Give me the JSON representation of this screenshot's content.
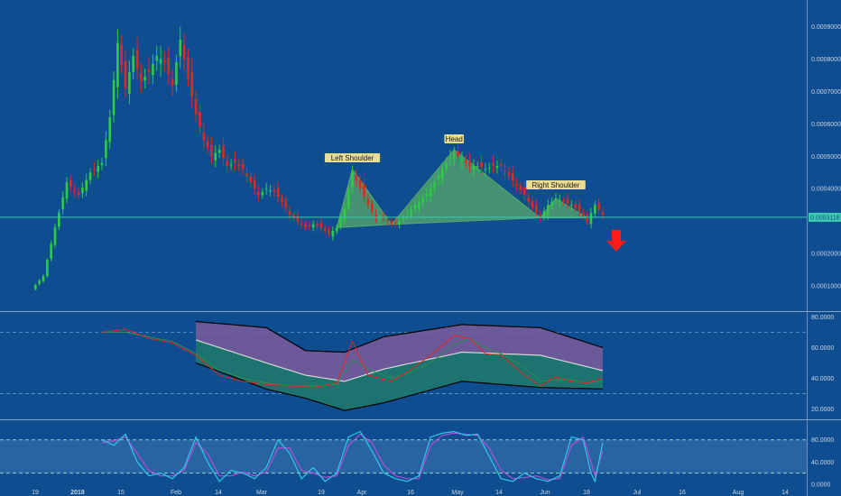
{
  "colors": {
    "background": "#0e4d8f",
    "up": "#2ecc40",
    "down": "#e0281e",
    "pattern_fill": "#57a96a",
    "neckline": "#3fc9b0",
    "arrow": "#ff1a1a",
    "bb_upper": "#000000",
    "bb_mid": "#d8d8d8",
    "bb_fill_top": "#7b5c9c",
    "bb_fill_bottom": "#1f7a6a",
    "rsi": "#e0281e",
    "rsi_signal": "#2a8f55",
    "stoch_k": "#33c7e6",
    "stoch_d": "#b54dd8",
    "stoch_band": "#3d78b0"
  },
  "chart_data": [
    {
      "type": "candlestick",
      "panel": "price",
      "x_tick_labels": [
        "19",
        "2018",
        "15",
        "Feb",
        "14",
        "Mar",
        "19",
        "Apr",
        "16",
        "May",
        "14",
        "Jun",
        "18",
        "Jul",
        "16",
        "Aug",
        "14"
      ],
      "y_tick_labels": [
        "0.0009000",
        "0.0008000",
        "0.0007000",
        "0.0006000",
        "0.0005000",
        "0.0004000",
        "0.0003118",
        "0.0002000",
        "0.0001000"
      ],
      "ylim": [
        5e-05,
        0.00096
      ],
      "last_price": 0.0003118,
      "last_price_label": "0.0003118",
      "close_path": [
        [
          0,
          9e-05
        ],
        [
          3,
          0.00013
        ],
        [
          6,
          0.00028
        ],
        [
          9,
          0.00042
        ],
        [
          12,
          0.00038
        ],
        [
          15,
          0.00045
        ],
        [
          18,
          0.00048
        ],
        [
          20,
          0.00062
        ],
        [
          22,
          0.00085
        ],
        [
          24,
          0.00071
        ],
        [
          26,
          0.00081
        ],
        [
          28,
          0.00073
        ],
        [
          30,
          0.00076
        ],
        [
          32,
          0.00081
        ],
        [
          34,
          0.00079
        ],
        [
          36,
          0.00072
        ],
        [
          38,
          0.00086
        ],
        [
          40,
          0.00074
        ],
        [
          42,
          0.00063
        ],
        [
          44,
          0.00055
        ],
        [
          46,
          0.0005
        ],
        [
          48,
          0.00052
        ],
        [
          50,
          0.00047
        ],
        [
          52,
          0.00048
        ],
        [
          54,
          0.00046
        ],
        [
          56,
          0.00042
        ],
        [
          58,
          0.00038
        ],
        [
          60,
          0.0004
        ],
        [
          62,
          0.00039
        ],
        [
          64,
          0.00036
        ],
        [
          66,
          0.00032
        ],
        [
          68,
          0.0003
        ],
        [
          70,
          0.00028
        ],
        [
          72,
          0.00029
        ],
        [
          74,
          0.00028
        ],
        [
          76,
          0.00026
        ],
        [
          78,
          0.00028
        ],
        [
          80,
          0.00034
        ],
        [
          82,
          0.00045
        ],
        [
          84,
          0.0004
        ],
        [
          86,
          0.00035
        ],
        [
          88,
          0.00031
        ],
        [
          90,
          0.00031
        ],
        [
          92,
          0.00029
        ],
        [
          94,
          0.0003
        ],
        [
          96,
          0.00032
        ],
        [
          98,
          0.00035
        ],
        [
          100,
          0.00037
        ],
        [
          102,
          0.0004
        ],
        [
          104,
          0.00044
        ],
        [
          106,
          0.00048
        ],
        [
          108,
          0.00051
        ],
        [
          110,
          0.00049
        ],
        [
          112,
          0.00047
        ],
        [
          114,
          0.00047
        ],
        [
          116,
          0.00046
        ],
        [
          118,
          0.00047
        ],
        [
          120,
          0.00047
        ],
        [
          122,
          0.00044
        ],
        [
          124,
          0.00041
        ],
        [
          126,
          0.00038
        ],
        [
          128,
          0.00034
        ],
        [
          130,
          0.00031
        ],
        [
          132,
          0.00035
        ],
        [
          134,
          0.00037
        ],
        [
          136,
          0.00036
        ],
        [
          138,
          0.00035
        ],
        [
          140,
          0.00033
        ],
        [
          142,
          0.0003
        ],
        [
          144,
          0.00035
        ],
        [
          146,
          0.00032
        ]
      ],
      "patterns": [
        {
          "label": "Left Shoulder",
          "points": [
            [
              78,
              0.00028
            ],
            [
              82,
              0.00046
            ],
            [
              92,
              0.00029
            ]
          ]
        },
        {
          "label": "Head",
          "points": [
            [
              92,
              0.00029
            ],
            [
              108,
              0.00052
            ],
            [
              130,
              0.00031
            ]
          ]
        },
        {
          "label": "Right Shoulder",
          "points": [
            [
              130,
              0.00031
            ],
            [
              134,
              0.00037
            ],
            [
              142,
              0.00031
            ]
          ]
        }
      ],
      "neckline": 0.0003118
    },
    {
      "type": "line",
      "panel": "rsi_bollinger",
      "y_tick_labels": [
        "80.0000",
        "60.0000",
        "40.0000",
        "20.0000"
      ],
      "ylim": [
        15,
        82
      ],
      "dashed_levels": [
        70,
        30
      ],
      "series": [
        {
          "key": "bb_upper",
          "points": [
            [
              42,
              77
            ],
            [
              60,
              73
            ],
            [
              70,
              58
            ],
            [
              80,
              57
            ],
            [
              90,
              67
            ],
            [
              110,
              75
            ],
            [
              130,
              73
            ],
            [
              146,
              60
            ]
          ]
        },
        {
          "key": "bb_lower",
          "points": [
            [
              42,
              50
            ],
            [
              60,
              33
            ],
            [
              70,
              27
            ],
            [
              80,
              19
            ],
            [
              90,
              24
            ],
            [
              110,
              38
            ],
            [
              130,
              34
            ],
            [
              146,
              33
            ]
          ]
        },
        {
          "key": "bb_mid",
          "points": [
            [
              42,
              65
            ],
            [
              60,
              50
            ],
            [
              70,
              42
            ],
            [
              80,
              38
            ],
            [
              90,
              46
            ],
            [
              110,
              57
            ],
            [
              130,
              55
            ],
            [
              146,
              45
            ]
          ]
        },
        {
          "key": "rsi",
          "points": [
            [
              18,
              70
            ],
            [
              24,
              72
            ],
            [
              30,
              66
            ],
            [
              36,
              63
            ],
            [
              42,
              55
            ],
            [
              48,
              42
            ],
            [
              54,
              38
            ],
            [
              60,
              36
            ],
            [
              66,
              35
            ],
            [
              72,
              34
            ],
            [
              78,
              37
            ],
            [
              82,
              64
            ],
            [
              86,
              42
            ],
            [
              92,
              38
            ],
            [
              96,
              44
            ],
            [
              102,
              55
            ],
            [
              108,
              68
            ],
            [
              112,
              66
            ],
            [
              116,
              56
            ],
            [
              120,
              55
            ],
            [
              126,
              42
            ],
            [
              130,
              35
            ],
            [
              134,
              41
            ],
            [
              138,
              38
            ],
            [
              142,
              37
            ],
            [
              146,
              40
            ]
          ]
        },
        {
          "key": "rsi_signal",
          "points": [
            [
              18,
              70
            ],
            [
              24,
              70
            ],
            [
              30,
              67
            ],
            [
              36,
              64
            ],
            [
              42,
              56
            ],
            [
              48,
              45
            ],
            [
              54,
              40
            ],
            [
              60,
              37
            ],
            [
              66,
              35
            ],
            [
              72,
              35
            ],
            [
              78,
              36
            ],
            [
              82,
              52
            ],
            [
              86,
              46
            ],
            [
              92,
              40
            ],
            [
              96,
              43
            ],
            [
              102,
              50
            ],
            [
              108,
              62
            ],
            [
              112,
              66
            ],
            [
              116,
              60
            ],
            [
              120,
              56
            ],
            [
              126,
              47
            ],
            [
              130,
              38
            ],
            [
              134,
              39
            ],
            [
              138,
              39
            ],
            [
              142,
              37
            ],
            [
              146,
              38
            ]
          ]
        }
      ]
    },
    {
      "type": "line",
      "panel": "stochastic",
      "y_tick_labels": [
        "80.0000",
        "40.0000",
        "0.0000"
      ],
      "ylim": [
        -5,
        112
      ],
      "dashed_levels": [
        80,
        20
      ],
      "series": [
        {
          "key": "stoch_k",
          "points": [
            [
              18,
              80
            ],
            [
              21,
              70
            ],
            [
              24,
              90
            ],
            [
              27,
              40
            ],
            [
              30,
              15
            ],
            [
              33,
              20
            ],
            [
              36,
              10
            ],
            [
              39,
              30
            ],
            [
              42,
              85
            ],
            [
              45,
              40
            ],
            [
              48,
              5
            ],
            [
              51,
              25
            ],
            [
              54,
              20
            ],
            [
              57,
              10
            ],
            [
              60,
              30
            ],
            [
              63,
              80
            ],
            [
              66,
              55
            ],
            [
              69,
              10
            ],
            [
              72,
              30
            ],
            [
              75,
              5
            ],
            [
              78,
              20
            ],
            [
              81,
              85
            ],
            [
              84,
              95
            ],
            [
              87,
              60
            ],
            [
              90,
              20
            ],
            [
              93,
              10
            ],
            [
              96,
              5
            ],
            [
              99,
              15
            ],
            [
              102,
              85
            ],
            [
              105,
              92
            ],
            [
              108,
              95
            ],
            [
              111,
              88
            ],
            [
              114,
              90
            ],
            [
              117,
              50
            ],
            [
              120,
              10
            ],
            [
              123,
              5
            ],
            [
              126,
              20
            ],
            [
              129,
              10
            ],
            [
              132,
              5
            ],
            [
              135,
              15
            ],
            [
              138,
              85
            ],
            [
              141,
              80
            ],
            [
              143,
              20
            ],
            [
              144,
              5
            ],
            [
              146,
              75
            ]
          ]
        },
        {
          "key": "stoch_d",
          "points": [
            [
              18,
              75
            ],
            [
              21,
              78
            ],
            [
              24,
              85
            ],
            [
              27,
              55
            ],
            [
              30,
              25
            ],
            [
              33,
              15
            ],
            [
              36,
              15
            ],
            [
              39,
              25
            ],
            [
              42,
              75
            ],
            [
              45,
              55
            ],
            [
              48,
              15
            ],
            [
              51,
              15
            ],
            [
              54,
              22
            ],
            [
              57,
              15
            ],
            [
              60,
              22
            ],
            [
              63,
              65
            ],
            [
              66,
              65
            ],
            [
              69,
              25
            ],
            [
              72,
              20
            ],
            [
              75,
              12
            ],
            [
              78,
              15
            ],
            [
              81,
              70
            ],
            [
              84,
              90
            ],
            [
              87,
              75
            ],
            [
              90,
              35
            ],
            [
              93,
              15
            ],
            [
              96,
              10
            ],
            [
              99,
              10
            ],
            [
              102,
              70
            ],
            [
              105,
              88
            ],
            [
              108,
              92
            ],
            [
              111,
              90
            ],
            [
              114,
              88
            ],
            [
              117,
              65
            ],
            [
              120,
              25
            ],
            [
              123,
              10
            ],
            [
              126,
              12
            ],
            [
              129,
              15
            ],
            [
              132,
              8
            ],
            [
              135,
              10
            ],
            [
              138,
              70
            ],
            [
              141,
              85
            ],
            [
              143,
              40
            ],
            [
              144,
              15
            ],
            [
              146,
              60
            ]
          ]
        }
      ]
    }
  ]
}
